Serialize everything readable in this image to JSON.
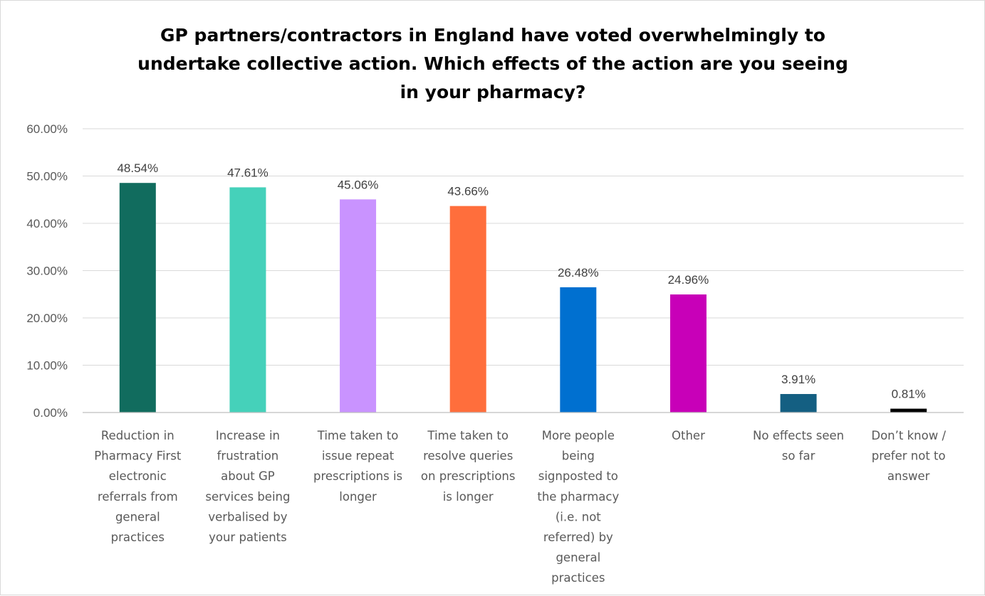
{
  "chart_data": {
    "type": "bar",
    "title": "GP partners/contractors in England have voted overwhelmingly to undertake collective action. Which effects of the action are you seeing in your pharmacy?",
    "title_lines": [
      "GP partners/contractors in England have voted overwhelmingly to",
      "undertake collective action. Which effects of the action are you seeing",
      "in your pharmacy?"
    ],
    "xlabel": "",
    "ylabel": "",
    "ylim": [
      0,
      60
    ],
    "ytick_values": [
      0,
      10,
      20,
      30,
      40,
      50,
      60
    ],
    "ytick_labels": [
      "0.00%",
      "10.00%",
      "20.00%",
      "30.00%",
      "40.00%",
      "50.00%",
      "60.00%"
    ],
    "grid": true,
    "legend": "none",
    "categories": [
      "Reduction in Pharmacy First electronic referrals from general practices",
      "Increase in frustration about GP services being verbalised by your patients",
      "Time taken to issue repeat prescriptions is longer",
      "Time taken to resolve queries on prescriptions is longer",
      "More people being signposted to the pharmacy (i.e. not referred) by general practices",
      "Other",
      "No effects seen so far",
      "Don’t know / prefer not to answer"
    ],
    "category_lines": [
      [
        "Reduction in",
        "Pharmacy First",
        "electronic",
        "referrals from",
        "general",
        "practices"
      ],
      [
        "Increase in",
        "frustration",
        "about GP",
        "services being",
        "verbalised by",
        "your patients"
      ],
      [
        "Time taken to",
        "issue repeat",
        "prescriptions is",
        "longer"
      ],
      [
        "Time taken to",
        "resolve queries",
        "on prescriptions",
        "is longer"
      ],
      [
        "More people",
        "being",
        "signposted to",
        "the pharmacy",
        "(i.e. not",
        "referred) by",
        "general",
        "practices"
      ],
      [
        "Other"
      ],
      [
        "No effects seen",
        "so far"
      ],
      [
        "Don’t know /",
        "prefer not to",
        "answer"
      ]
    ],
    "values": [
      48.54,
      47.61,
      45.06,
      43.66,
      26.48,
      24.96,
      3.91,
      0.81
    ],
    "value_labels": [
      "48.54%",
      "47.61%",
      "45.06%",
      "43.66%",
      "26.48%",
      "24.96%",
      "3.91%",
      "0.81%"
    ],
    "colors": [
      "#116C5E",
      "#45D1BA",
      "#C993FF",
      "#FF6E3C",
      "#0070D0",
      "#C800B8",
      "#145F82",
      "#000000"
    ]
  }
}
